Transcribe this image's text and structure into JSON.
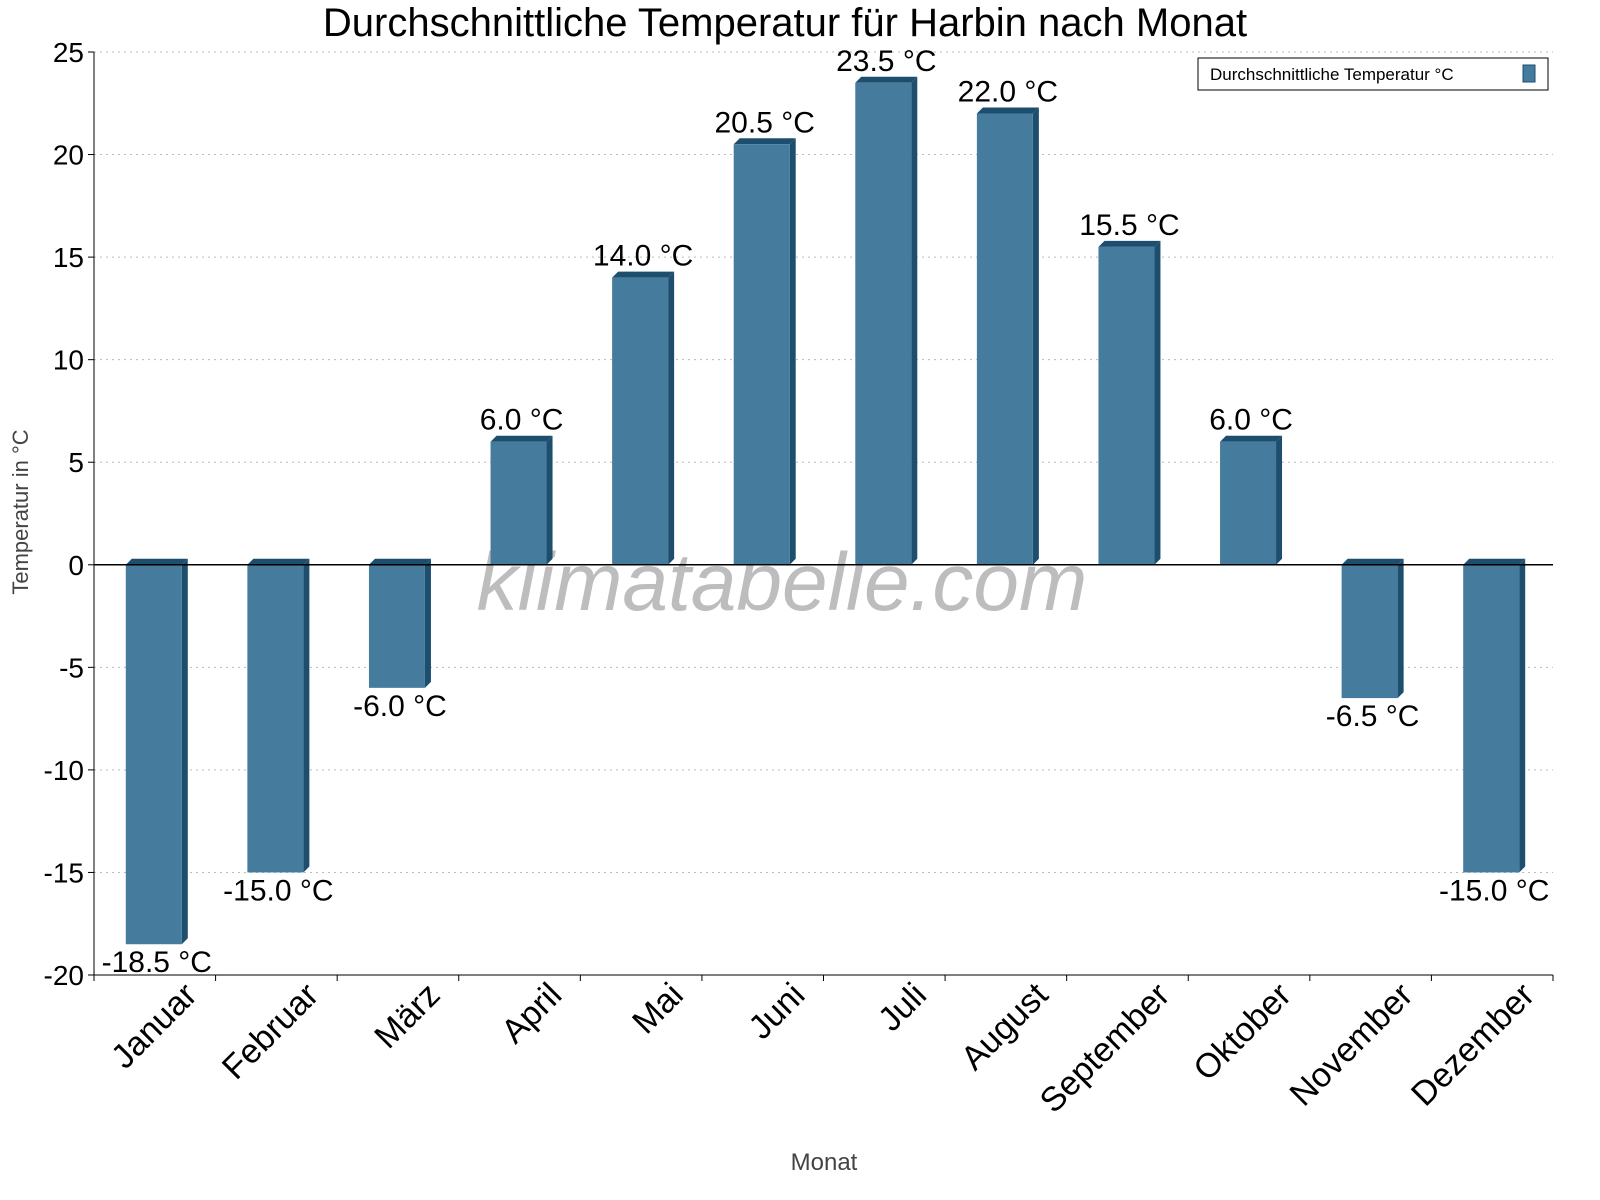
{
  "chart_data": {
    "type": "bar",
    "title": "Durchschnittliche Temperatur für Harbin nach Monat",
    "xlabel": "Monat",
    "ylabel": "Temperatur in °C",
    "categories": [
      "Januar",
      "Februar",
      "März",
      "April",
      "Mai",
      "Juni",
      "Juli",
      "August",
      "September",
      "Oktober",
      "November",
      "Dezember"
    ],
    "series": [
      {
        "name": "Durchschnittliche Temperatur °C",
        "values": [
          -18.5,
          -15.0,
          -6.0,
          6.0,
          14.0,
          20.5,
          23.5,
          22.0,
          15.5,
          6.0,
          -6.5,
          -15.0
        ],
        "color": "#457b9d",
        "side_color": "#1d4e6e"
      }
    ],
    "data_labels": [
      "-18.5 °C",
      "-15.0 °C",
      "-6.0 °C",
      "6.0 °C",
      "14.0 °C",
      "20.5 °C",
      "23.5 °C",
      "22.0 °C",
      "15.5 °C",
      "6.0 °C",
      "-6.5 °C",
      "-15.0 °C"
    ],
    "ylim": [
      -20,
      25
    ],
    "yticks": [
      25,
      20,
      15,
      10,
      5,
      0,
      -5,
      -10,
      -15,
      -20
    ],
    "grid": true,
    "legend_position": "top-right",
    "watermark": "klimatabelle.com"
  }
}
